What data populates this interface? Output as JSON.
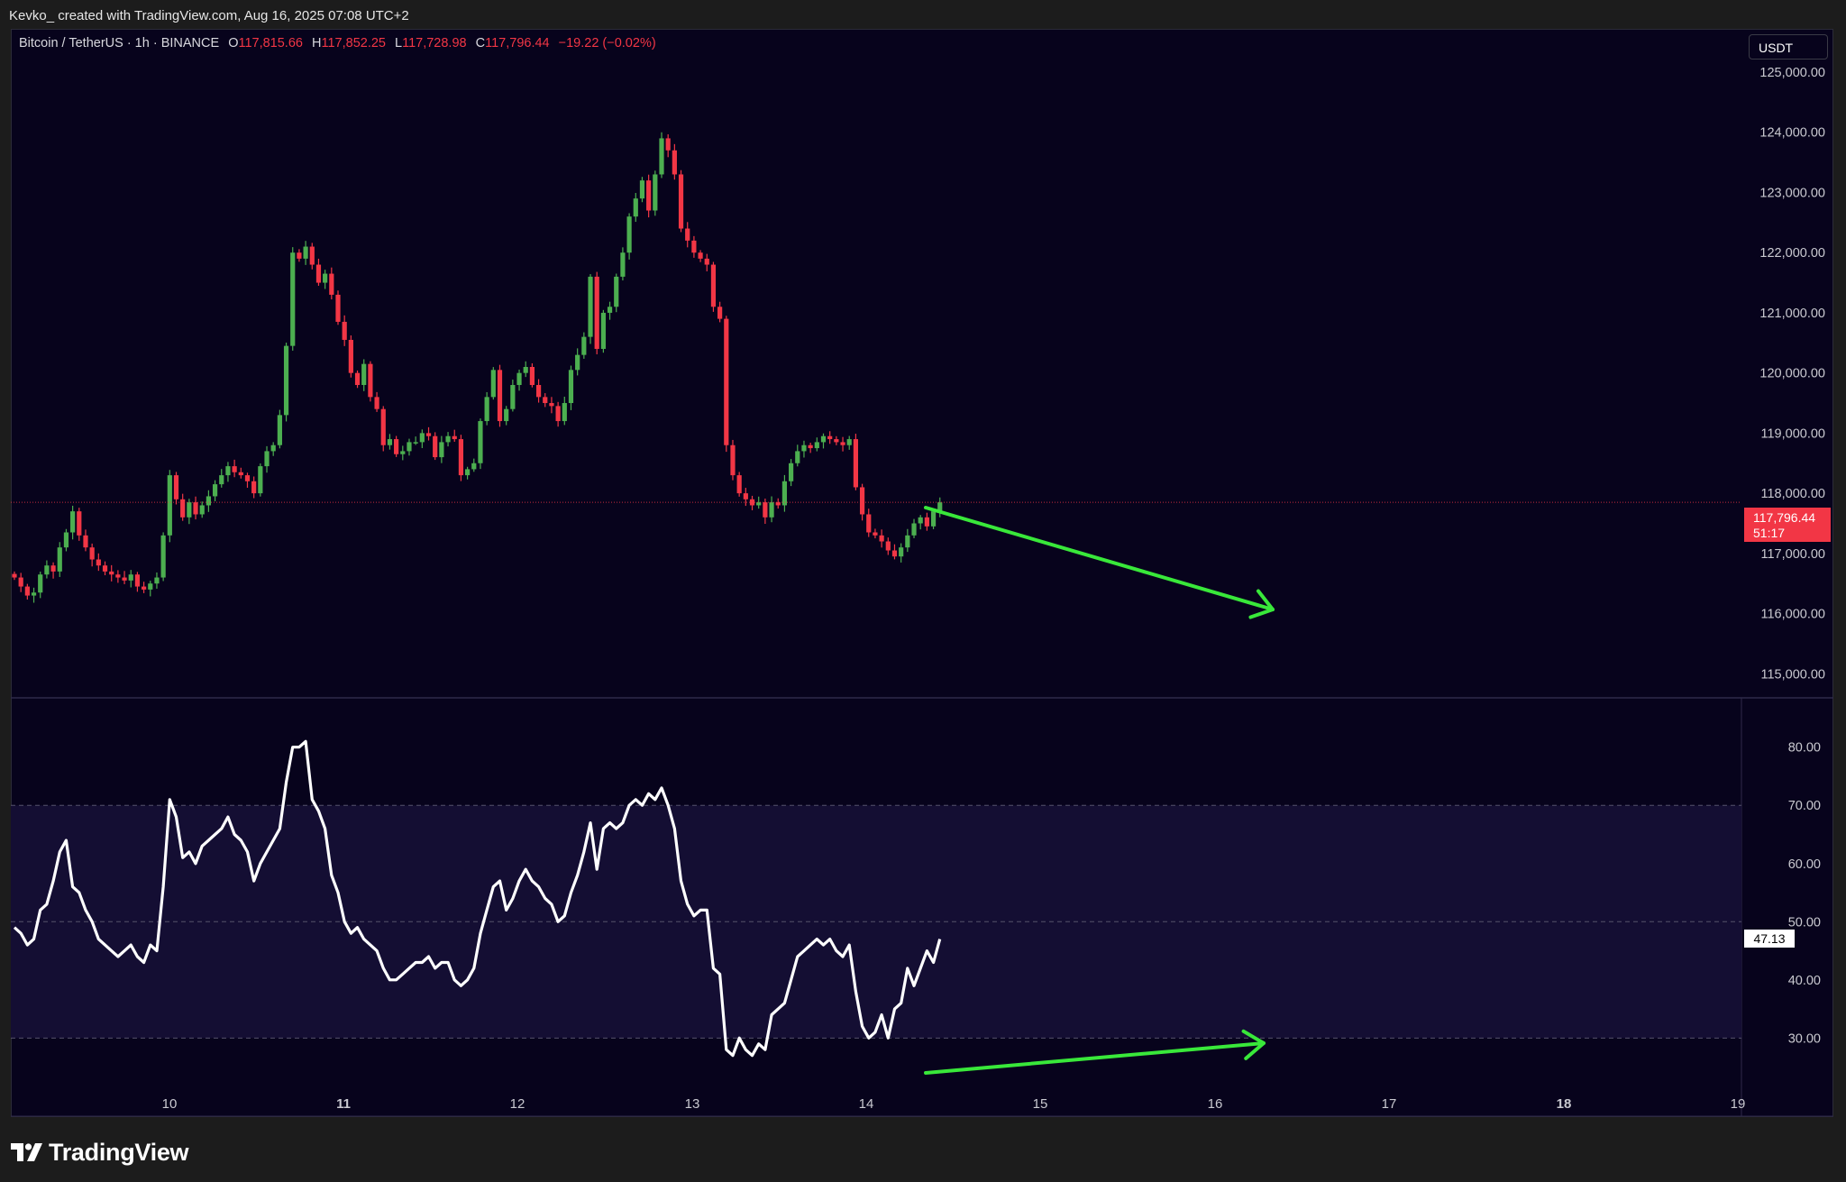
{
  "header": {
    "attribution": "Kevko_  created with TradingView.com, Aug 16, 2025 07:08 UTC+2"
  },
  "legend": {
    "symbol": "Bitcoin / TetherUS · 1h · BINANCE",
    "open_label": "O",
    "open": "117,815.66",
    "high_label": "H",
    "high": "117,852.25",
    "low_label": "L",
    "low": "117,728.98",
    "close_label": "C",
    "close": "117,796.44",
    "change": "−19.22 (−0.02%)"
  },
  "currency_button": "USDT",
  "price_axis": {
    "ticks": [
      "125,000.00",
      "124,000.00",
      "123,000.00",
      "122,000.00",
      "121,000.00",
      "120,000.00",
      "119,000.00",
      "118,000.00",
      "117,000.00",
      "116,000.00",
      "115,000.00"
    ],
    "current_price": "117,796.44",
    "countdown": "51:17"
  },
  "rsi_axis": {
    "ticks": [
      "80.00",
      "70.00",
      "60.00",
      "50.00",
      "40.00",
      "30.00"
    ],
    "current_value": "47.13"
  },
  "time_axis": {
    "labels": [
      "10",
      "11",
      "12",
      "13",
      "14",
      "15",
      "16",
      "17",
      "18",
      "19"
    ]
  },
  "footer": {
    "brand": "TradingView"
  },
  "colors": {
    "up": "#4caf50",
    "down": "#f23645",
    "background": "#07031c",
    "annotation": "#39e83a",
    "rsi_line": "#ffffff"
  },
  "chart_data": [
    {
      "type": "candlestick",
      "title": "Bitcoin / TetherUS · 1h · BINANCE",
      "ylim": [
        114600,
        125300
      ],
      "x_labels": [
        "10",
        "11",
        "12",
        "13",
        "14",
        "15",
        "16",
        "17",
        "18",
        "19"
      ],
      "candle_closes": [
        116600,
        116450,
        116300,
        116350,
        116650,
        116800,
        116700,
        117100,
        117350,
        117700,
        117300,
        117100,
        116900,
        116800,
        116700,
        116650,
        116600,
        116550,
        116650,
        116450,
        116400,
        116500,
        116600,
        117300,
        118300,
        117900,
        117600,
        117850,
        117650,
        117800,
        117950,
        118150,
        118300,
        118450,
        118350,
        118300,
        118200,
        118000,
        118450,
        118700,
        118800,
        119300,
        120450,
        122000,
        121900,
        122100,
        121800,
        121500,
        121650,
        121300,
        120850,
        120550,
        120000,
        119800,
        120150,
        119600,
        119400,
        118800,
        118900,
        118650,
        118700,
        118850,
        118850,
        119000,
        118950,
        118600,
        118850,
        118950,
        118900,
        118300,
        118400,
        118500,
        119200,
        119600,
        120050,
        119200,
        119400,
        119800,
        120000,
        120100,
        119800,
        119600,
        119500,
        119450,
        119200,
        119500,
        120050,
        120300,
        120600,
        121600,
        120400,
        121000,
        121100,
        121600,
        122000,
        122600,
        122900,
        123200,
        122700,
        123300,
        123900,
        123700,
        123300,
        122400,
        122200,
        122000,
        121900,
        121800,
        121100,
        120900,
        118800,
        118300,
        118000,
        117900,
        117800,
        117850,
        117600,
        117850,
        117800,
        118200,
        118500,
        118700,
        118800,
        118750,
        118850,
        118950,
        118900,
        118850,
        118800,
        118900,
        118100,
        117650,
        117350,
        117300,
        117200,
        117050,
        116950,
        117100,
        117300,
        117500,
        117600,
        117450,
        117700,
        117850
      ]
    },
    {
      "type": "line",
      "title": "RSI",
      "ylim": [
        17.5,
        86
      ],
      "reference_lines": [
        70,
        50,
        30
      ],
      "values": [
        49,
        48,
        46,
        47,
        52,
        53,
        57,
        62,
        64,
        56,
        55,
        52,
        50,
        47,
        46,
        45,
        44,
        45,
        46,
        44,
        43,
        46,
        45,
        56,
        71,
        68,
        61,
        62,
        60,
        63,
        64,
        65,
        66,
        68,
        65,
        64,
        62,
        57,
        60,
        62,
        64,
        66,
        74,
        80,
        80,
        81,
        71,
        69,
        66,
        58,
        55,
        50,
        48,
        49,
        47,
        46,
        45,
        42,
        40,
        40,
        41,
        42,
        43,
        43,
        44,
        42,
        43,
        43,
        40,
        39,
        40,
        42,
        48,
        52,
        56,
        57,
        52,
        54,
        57,
        59,
        57,
        56,
        54,
        53,
        50,
        51,
        55,
        58,
        62,
        67,
        59,
        66,
        67,
        66,
        67,
        70,
        71,
        70,
        72,
        71,
        73,
        70,
        66,
        57,
        53,
        51,
        52,
        52,
        42,
        41,
        28,
        27,
        30,
        28,
        27,
        29,
        28,
        34,
        35,
        36,
        40,
        44,
        45,
        46,
        47,
        46,
        47,
        45,
        44,
        46,
        38,
        32,
        30,
        31,
        34,
        30,
        35,
        36,
        42,
        39,
        42,
        45,
        43,
        47
      ]
    }
  ]
}
